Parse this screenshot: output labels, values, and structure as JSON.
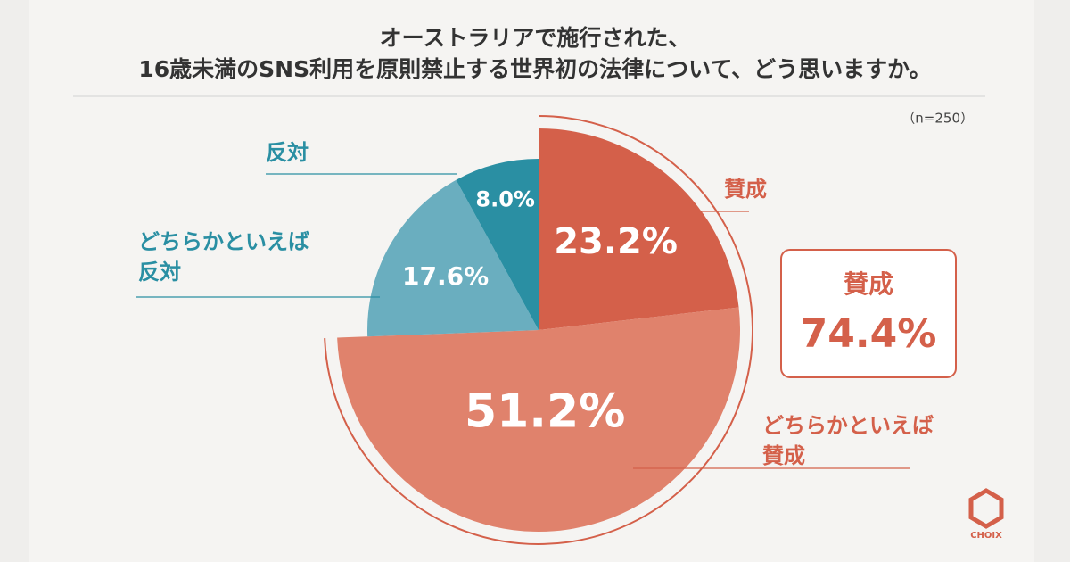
{
  "title": [
    "オーストラリアで施行された、",
    "16歳未満のSNS利用を原則禁止する世界初の法律について、どう思いますか。"
  ],
  "chart_data": {
    "type": "pie",
    "note": "（n=250）",
    "categories": [
      "賛成",
      "どちらかといえば\n賛成",
      "どちらかといえば\n反対",
      "反対"
    ],
    "values": [
      23.2,
      51.2,
      17.6,
      8.0
    ],
    "value_labels": [
      "23.2%",
      "51.2%",
      "17.6%",
      "8.0%"
    ],
    "colors": [
      "#d4604a",
      "#e0826c",
      "#6aaebf",
      "#2a8fa3"
    ],
    "summary": {
      "label": "賛成",
      "value": 74.4,
      "value_label": "74.4%"
    }
  },
  "logo": "CHOIX"
}
